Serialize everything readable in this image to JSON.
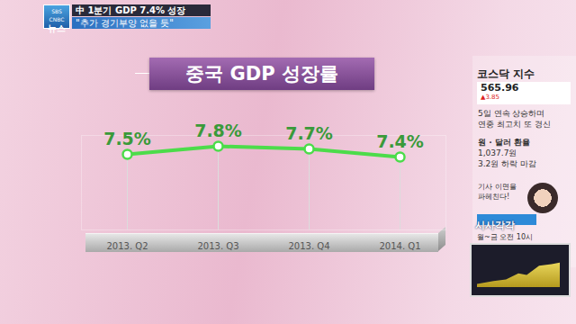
{
  "header": {
    "logo": [
      "SBS CNBC",
      "뉴스"
    ],
    "headline": "中 1분기 GDP 7.4% 성장",
    "subheadline": "\"추가 경기부양 없을 듯\""
  },
  "chart_data": {
    "type": "line",
    "title": "중국 GDP 성장률",
    "categories": [
      "2013. Q2",
      "2013. Q3",
      "2013. Q4",
      "2014. Q1"
    ],
    "values": [
      7.5,
      7.8,
      7.7,
      7.4
    ],
    "value_labels": [
      "7.5%",
      "7.8%",
      "7.7%",
      "7.4%"
    ],
    "data_labels": true,
    "color": "#4cdc4a",
    "marker": "circle",
    "ylim": [
      4.7,
      8.2
    ],
    "tick_labels": "x",
    "grid": true
  },
  "sidebar": {
    "index": {
      "title": "코스닥 지수",
      "value": "565.96",
      "change": "▲3.85",
      "note": [
        "5일 연속 상승하며",
        "연중 최고치 또 경신"
      ]
    },
    "fx": {
      "title": "원 · 달러 환율",
      "value": "1,037.7원",
      "note": "3.2원 하락 마감"
    },
    "promo": {
      "tagline": [
        "기사 이면을",
        "파헤친다!"
      ],
      "show": "시사각각",
      "time": "월~금 오전 10시"
    }
  }
}
